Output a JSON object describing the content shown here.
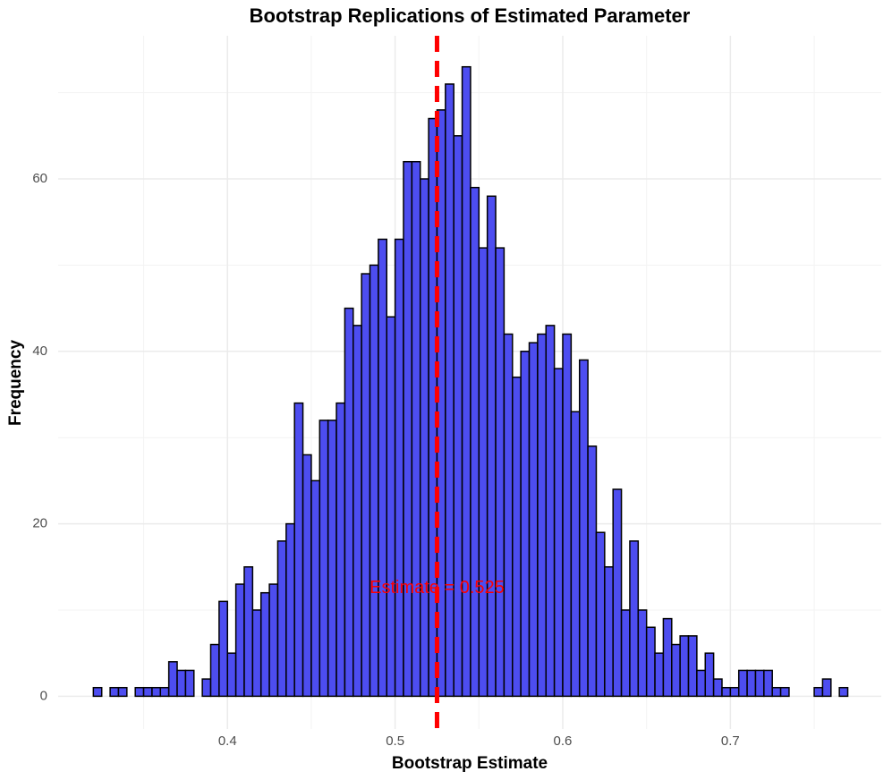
{
  "chart_data": {
    "type": "histogram",
    "title": "Bootstrap Replications of Estimated Parameter",
    "x_label": "Bootstrap Estimate",
    "y_label": "Frequency",
    "bins": [
      0.32,
      0.325,
      0.33,
      0.335,
      0.34,
      0.345,
      0.35,
      0.355,
      0.36,
      0.365,
      0.37,
      0.375,
      0.38,
      0.385,
      0.39,
      0.395,
      0.4,
      0.405,
      0.41,
      0.415,
      0.42,
      0.425,
      0.43,
      0.435,
      0.44,
      0.445,
      0.45,
      0.455,
      0.46,
      0.465,
      0.47,
      0.475,
      0.48,
      0.485,
      0.49,
      0.495,
      0.5,
      0.505,
      0.51,
      0.515,
      0.52,
      0.525,
      0.53,
      0.535,
      0.54,
      0.545,
      0.55,
      0.555,
      0.56,
      0.565,
      0.57,
      0.575,
      0.58,
      0.585,
      0.59,
      0.595,
      0.6,
      0.605,
      0.61,
      0.615,
      0.62,
      0.625,
      0.63,
      0.635,
      0.64,
      0.645,
      0.65,
      0.655,
      0.66,
      0.665,
      0.67,
      0.675,
      0.68,
      0.685,
      0.69,
      0.695,
      0.7,
      0.705,
      0.71,
      0.715,
      0.72,
      0.725,
      0.73,
      0.735,
      0.74,
      0.745,
      0.75,
      0.755,
      0.76,
      0.765,
      0.77
    ],
    "values": [
      1,
      0,
      1,
      1,
      0,
      1,
      1,
      1,
      1,
      4,
      3,
      3,
      0,
      2,
      6,
      11,
      5,
      13,
      15,
      10,
      12,
      13,
      18,
      20,
      34,
      28,
      25,
      32,
      32,
      34,
      45,
      43,
      49,
      50,
      53,
      44,
      53,
      62,
      62,
      60,
      67,
      68,
      71,
      65,
      73,
      59,
      52,
      58,
      52,
      42,
      37,
      40,
      41,
      42,
      43,
      38,
      42,
      33,
      39,
      29,
      19,
      15,
      24,
      10,
      18,
      10,
      8,
      5,
      9,
      6,
      7,
      7,
      3,
      5,
      2,
      1,
      1,
      3,
      3,
      3,
      3,
      1,
      1,
      0,
      0,
      0,
      1,
      2,
      0,
      1
    ],
    "color": "#4d4df0",
    "edge_color": "#000000",
    "estimate": 0.525,
    "estimate_color": "#ff0000",
    "annotation": {
      "text": "Estimate = 0.525",
      "y": 12.5
    },
    "xlim": [
      0.299,
      0.79
    ],
    "ylim": [
      -3.8,
      76.6
    ],
    "xticks": [
      0.4,
      0.5,
      0.6,
      0.7
    ],
    "yticks": [
      0,
      20,
      40,
      60
    ],
    "xminor": [
      0.35,
      0.45,
      0.55,
      0.65,
      0.75
    ],
    "yminor": [
      10,
      30,
      50,
      70
    ],
    "grid": true
  }
}
